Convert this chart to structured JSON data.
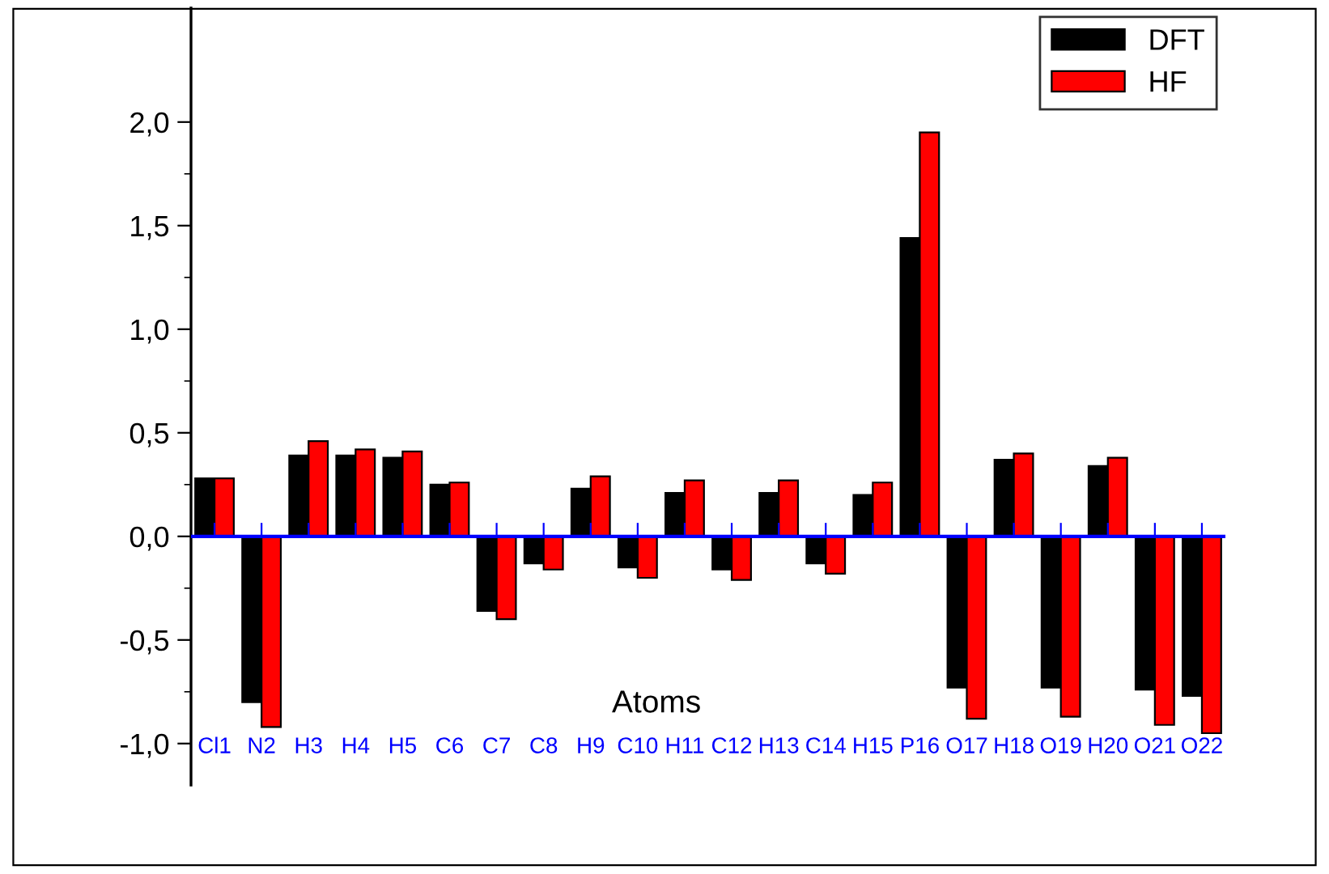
{
  "chart_data": {
    "type": "bar",
    "xlabel": "Atoms",
    "categories": [
      "Cl1",
      "N2",
      "H3",
      "H4",
      "H5",
      "C6",
      "C7",
      "C8",
      "H9",
      "C10",
      "H11",
      "C12",
      "H13",
      "C14",
      "H15",
      "P16",
      "O17",
      "H18",
      "O19",
      "H20",
      "O21",
      "O22"
    ],
    "series": [
      {
        "name": "DFT",
        "color": "#000000",
        "values": [
          0.28,
          -0.8,
          0.39,
          0.39,
          0.38,
          0.25,
          -0.36,
          -0.13,
          0.23,
          -0.15,
          0.21,
          -0.16,
          0.21,
          -0.13,
          0.2,
          1.44,
          -0.73,
          0.37,
          -0.73,
          0.34,
          -0.74,
          -0.77
        ]
      },
      {
        "name": "HF",
        "color": "#ff0000",
        "values": [
          0.28,
          -0.92,
          0.46,
          0.42,
          0.41,
          0.26,
          -0.4,
          -0.16,
          0.29,
          -0.2,
          0.27,
          -0.21,
          0.27,
          -0.18,
          0.26,
          1.95,
          -0.88,
          0.4,
          -0.87,
          0.38,
          -0.91,
          -0.95
        ]
      }
    ],
    "ylim": [
      -1.2,
      2.55
    ],
    "yticks": [
      {
        "value": -1.0,
        "label": "-1,0"
      },
      {
        "value": -0.5,
        "label": "-0,5"
      },
      {
        "value": 0.0,
        "label": "0,0"
      },
      {
        "value": 0.5,
        "label": "0,5"
      },
      {
        "value": 1.0,
        "label": "1,0"
      },
      {
        "value": 1.5,
        "label": "1,5"
      },
      {
        "value": 2.0,
        "label": "2,0"
      }
    ],
    "ref_lines": [
      {
        "axis": "y",
        "value": 0,
        "color": "#0000ff",
        "line_style": "solid"
      }
    ],
    "grid": false,
    "legend": "top right"
  }
}
